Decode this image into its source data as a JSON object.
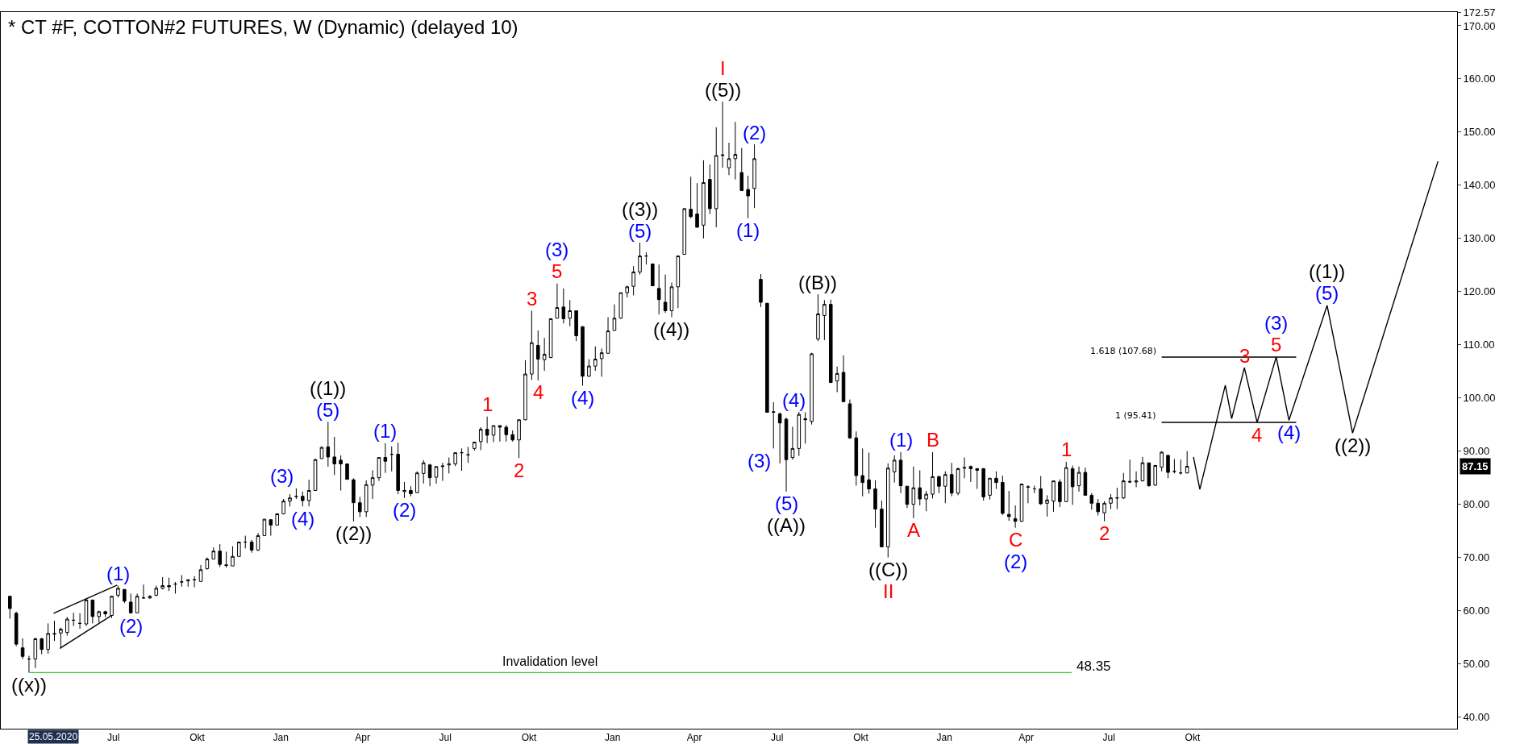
{
  "chart_data": {
    "type": "candlestick",
    "title": "* CT #F, COTTON#2 FUTURES, W (Dynamic) (delayed 10)",
    "color": "#000000",
    "x": [
      "2020-03-09",
      "2020-03-16",
      "2020-03-23",
      "2020-03-30",
      "2020-04-06",
      "2020-04-13",
      "2020-04-20",
      "2020-04-27",
      "2020-05-04",
      "2020-05-11",
      "2020-05-18",
      "2020-05-25",
      "2020-06-01",
      "2020-06-08",
      "2020-06-15",
      "2020-06-22",
      "2020-06-29",
      "2020-07-06",
      "2020-07-13",
      "2020-07-20",
      "2020-07-27",
      "2020-08-03",
      "2020-08-10",
      "2020-08-17",
      "2020-08-24",
      "2020-08-31",
      "2020-09-07",
      "2020-09-14",
      "2020-09-21",
      "2020-09-28",
      "2020-10-05",
      "2020-10-12",
      "2020-10-19",
      "2020-10-26",
      "2020-11-02",
      "2020-11-09",
      "2020-11-16",
      "2020-11-23",
      "2020-11-30",
      "2020-12-07",
      "2020-12-14",
      "2020-12-21",
      "2020-12-28",
      "2021-01-04",
      "2021-01-11",
      "2021-01-18",
      "2021-01-25",
      "2021-02-01",
      "2021-02-08",
      "2021-02-15",
      "2021-02-22",
      "2021-03-01",
      "2021-03-08",
      "2021-03-15",
      "2021-03-22",
      "2021-03-29",
      "2021-04-05",
      "2021-04-12",
      "2021-04-19",
      "2021-04-26",
      "2021-05-03",
      "2021-05-10",
      "2021-05-17",
      "2021-05-24",
      "2021-05-31",
      "2021-06-07",
      "2021-06-14",
      "2021-06-21",
      "2021-06-28",
      "2021-07-05",
      "2021-07-12",
      "2021-07-19",
      "2021-07-26",
      "2021-08-02",
      "2021-08-09",
      "2021-08-16",
      "2021-08-23",
      "2021-08-30",
      "2021-09-06",
      "2021-09-13",
      "2021-09-20",
      "2021-09-27",
      "2021-10-04",
      "2021-10-11",
      "2021-10-18",
      "2021-10-25",
      "2021-11-01",
      "2021-11-08",
      "2021-11-15",
      "2021-11-22",
      "2021-11-29",
      "2021-12-06",
      "2021-12-13",
      "2021-12-20",
      "2021-12-27",
      "2022-01-03",
      "2022-01-10",
      "2022-01-17",
      "2022-01-24",
      "2022-01-31",
      "2022-02-07",
      "2022-02-14",
      "2022-02-21",
      "2022-02-28",
      "2022-03-07",
      "2022-03-14",
      "2022-03-21",
      "2022-03-28",
      "2022-04-04",
      "2022-04-11",
      "2022-04-18",
      "2022-04-25",
      "2022-05-02",
      "2022-05-09",
      "2022-05-16",
      "2022-05-23",
      "2022-05-30",
      "2022-06-06",
      "2022-06-13",
      "2022-06-20",
      "2022-06-27",
      "2022-07-04",
      "2022-07-11",
      "2022-07-18",
      "2022-07-25",
      "2022-08-01",
      "2022-08-08",
      "2022-08-15",
      "2022-08-22",
      "2022-08-29",
      "2022-09-05",
      "2022-09-12",
      "2022-09-19",
      "2022-09-26",
      "2022-10-03",
      "2022-10-10",
      "2022-10-17",
      "2022-10-24",
      "2022-10-31",
      "2022-11-07",
      "2022-11-14",
      "2022-11-21",
      "2022-11-28",
      "2022-12-05",
      "2022-12-12",
      "2022-12-19",
      "2022-12-26",
      "2023-01-02",
      "2023-01-09",
      "2023-01-16",
      "2023-01-23",
      "2023-01-30",
      "2023-02-06",
      "2023-02-13",
      "2023-02-20",
      "2023-02-27",
      "2023-03-06",
      "2023-03-13",
      "2023-03-20",
      "2023-03-27",
      "2023-04-03",
      "2023-04-10",
      "2023-04-17",
      "2023-04-24",
      "2023-05-01",
      "2023-05-08",
      "2023-05-15",
      "2023-05-22",
      "2023-05-29",
      "2023-06-05",
      "2023-06-12",
      "2023-06-19",
      "2023-06-26",
      "2023-07-03",
      "2023-07-10",
      "2023-07-17",
      "2023-07-24",
      "2023-07-31",
      "2023-08-07",
      "2023-08-14",
      "2023-08-21",
      "2023-08-28",
      "2023-09-04",
      "2023-09-11",
      "2023-09-18",
      "2023-09-25"
    ],
    "ohlc": [
      [
        62.7,
        62.8,
        58.5,
        60.4
      ],
      [
        59.5,
        59.8,
        53.3,
        53.7
      ],
      [
        53.0,
        54.8,
        50.9,
        51.4
      ],
      [
        50.9,
        51.5,
        48.35,
        50.9
      ],
      [
        50.9,
        54.9,
        49.2,
        54.7
      ],
      [
        54.7,
        54.9,
        51.8,
        52.7
      ],
      [
        52.7,
        57.6,
        51.9,
        55.7
      ],
      [
        55.7,
        58.1,
        54.3,
        55.6
      ],
      [
        55.8,
        56.8,
        52.9,
        56.5
      ],
      [
        55.9,
        58.8,
        55.3,
        58.4
      ],
      [
        58.2,
        59.6,
        57.1,
        58.2
      ],
      [
        57.6,
        59.5,
        56.6,
        57.6
      ],
      [
        57.5,
        62.3,
        57.1,
        62.0
      ],
      [
        62.0,
        62.0,
        57.6,
        58.9
      ],
      [
        58.9,
        60.0,
        57.8,
        59.8
      ],
      [
        59.8,
        60.0,
        58.8,
        59.4
      ],
      [
        59.1,
        62.8,
        58.6,
        62.7
      ],
      [
        62.9,
        64.7,
        62.5,
        64.2
      ],
      [
        64.0,
        64.0,
        61.4,
        61.8
      ],
      [
        61.6,
        63.2,
        59.4,
        59.6
      ],
      [
        59.6,
        63.2,
        59.6,
        62.7
      ],
      [
        62.4,
        64.9,
        62.2,
        62.4
      ],
      [
        62.4,
        62.9,
        62.2,
        62.7
      ],
      [
        62.9,
        64.7,
        62.7,
        64.2
      ],
      [
        64.2,
        66.3,
        64.0,
        64.7
      ],
      [
        64.7,
        66.2,
        63.7,
        64.5
      ],
      [
        65.0,
        65.4,
        63.2,
        65.0
      ],
      [
        65.4,
        66.7,
        64.5,
        65.4
      ],
      [
        65.6,
        65.9,
        64.5,
        65.8
      ],
      [
        65.8,
        66.5,
        64.4,
        65.8
      ],
      [
        65.5,
        68.6,
        65.5,
        67.7
      ],
      [
        67.9,
        70.0,
        67.7,
        69.7
      ],
      [
        69.7,
        71.9,
        69.7,
        71.2
      ],
      [
        71.2,
        72.5,
        68.2,
        68.7
      ],
      [
        68.6,
        71.1,
        68.1,
        68.5
      ],
      [
        68.4,
        72.1,
        68.4,
        70.2
      ],
      [
        70.2,
        72.9,
        70.2,
        72.9
      ],
      [
        72.9,
        74.1,
        71.7,
        72.9
      ],
      [
        72.9,
        73.3,
        70.9,
        71.4
      ],
      [
        71.4,
        74.6,
        71.2,
        74.1
      ],
      [
        74.1,
        77.2,
        74.1,
        77.2
      ],
      [
        77.1,
        77.2,
        74.1,
        76.1
      ],
      [
        76.1,
        78.3,
        76.1,
        78.2
      ],
      [
        78.2,
        81.0,
        78.1,
        80.6
      ],
      [
        80.6,
        81.9,
        79.6,
        81.2
      ],
      [
        81.5,
        83.0,
        81.0,
        81.5
      ],
      [
        81.5,
        82.4,
        79.6,
        80.7
      ],
      [
        80.7,
        84.6,
        79.6,
        82.6
      ],
      [
        82.6,
        88.6,
        82.6,
        88.4
      ],
      [
        88.6,
        90.9,
        88.6,
        90.7
      ],
      [
        90.8,
        95.5,
        87.1,
        88.9
      ],
      [
        88.9,
        92.7,
        85.5,
        87.6
      ],
      [
        88.3,
        89.2,
        82.6,
        87.6
      ],
      [
        87.6,
        87.6,
        84.7,
        84.7
      ],
      [
        84.6,
        84.9,
        76.8,
        80.3
      ],
      [
        80.3,
        81.4,
        77.6,
        78.6
      ],
      [
        78.6,
        84.5,
        77.6,
        83.7
      ],
      [
        83.6,
        86.4,
        81.0,
        85.0
      ],
      [
        85.0,
        88.8,
        84.4,
        88.8
      ],
      [
        88.8,
        91.5,
        85.9,
        88.1
      ],
      [
        89.4,
        90.9,
        86.2,
        89.4
      ],
      [
        89.4,
        91.6,
        81.9,
        82.6
      ],
      [
        82.4,
        84.2,
        81.2,
        82.6
      ],
      [
        82.6,
        83.4,
        81.5,
        82.0
      ],
      [
        82.2,
        86.2,
        82.1,
        85.9
      ],
      [
        85.8,
        88.3,
        83.9,
        87.8
      ],
      [
        87.4,
        87.6,
        83.4,
        85.0
      ],
      [
        85.1,
        87.2,
        83.9,
        87.1
      ],
      [
        87.1,
        87.8,
        84.4,
        87.2
      ],
      [
        87.4,
        88.8,
        85.8,
        87.6
      ],
      [
        87.6,
        89.8,
        87.2,
        89.7
      ],
      [
        89.7,
        90.5,
        86.3,
        89.7
      ],
      [
        89.3,
        90.8,
        87.8,
        89.3
      ],
      [
        90.5,
        91.7,
        90.1,
        91.7
      ],
      [
        91.8,
        94.5,
        90.2,
        94.1
      ],
      [
        94.1,
        96.5,
        91.5,
        93.0
      ],
      [
        93.0,
        94.8,
        91.7,
        94.8
      ],
      [
        94.8,
        94.8,
        91.8,
        94.5
      ],
      [
        94.5,
        94.9,
        91.8,
        93.1
      ],
      [
        93.1,
        93.9,
        91.8,
        92.1
      ],
      [
        92.1,
        96.0,
        88.7,
        95.9
      ],
      [
        95.9,
        107.1,
        95.8,
        104.5
      ],
      [
        104.5,
        116.4,
        103.4,
        110.4
      ],
      [
        109.9,
        112.7,
        103.3,
        107.3
      ],
      [
        107.2,
        111.3,
        105.1,
        108.2
      ],
      [
        107.6,
        115.0,
        107.5,
        114.9
      ],
      [
        115.0,
        121.5,
        115.0,
        117.0
      ],
      [
        117.1,
        120.6,
        114.0,
        114.9
      ],
      [
        115.0,
        118.4,
        113.5,
        116.4
      ],
      [
        116.4,
        116.4,
        110.7,
        111.7
      ],
      [
        113.4,
        113.5,
        102.3,
        104.1
      ],
      [
        104.1,
        107.3,
        104.0,
        106.0
      ],
      [
        106.0,
        109.7,
        105.1,
        107.3
      ],
      [
        107.4,
        109.3,
        104.0,
        108.5
      ],
      [
        108.4,
        115.2,
        108.3,
        112.6
      ],
      [
        112.7,
        117.6,
        112.7,
        115.0
      ],
      [
        115.0,
        119.8,
        114.9,
        119.8
      ],
      [
        119.8,
        121.1,
        118.9,
        120.9
      ],
      [
        121.0,
        124.8,
        119.3,
        123.7
      ],
      [
        123.7,
        129.2,
        123.2,
        126.7
      ],
      [
        126.7,
        127.4,
        125.1,
        126.7
      ],
      [
        125.2,
        125.3,
        121.0,
        121.1
      ],
      [
        120.6,
        125.1,
        115.7,
        118.5
      ],
      [
        118.0,
        123.2,
        116.0,
        116.4
      ],
      [
        116.4,
        121.7,
        115.2,
        120.9
      ],
      [
        120.9,
        126.8,
        116.9,
        126.7
      ],
      [
        127.0,
        135.7,
        127.0,
        135.6
      ],
      [
        135.5,
        141.6,
        133.8,
        134.1
      ],
      [
        134.6,
        140.4,
        132.1,
        132.1
      ],
      [
        132.5,
        144.7,
        130.0,
        140.5
      ],
      [
        141.1,
        143.9,
        134.6,
        135.6
      ],
      [
        135.6,
        150.9,
        132.1,
        145.6
      ],
      [
        145.6,
        155.7,
        143.3,
        145.7
      ],
      [
        143.3,
        148.0,
        141.9,
        145.0
      ],
      [
        145.0,
        151.9,
        141.1,
        145.8
      ],
      [
        142.4,
        147.0,
        139.0,
        139.0
      ],
      [
        139.2,
        141.8,
        133.8,
        138.0
      ],
      [
        139.4,
        147.7,
        135.7,
        145.0
      ],
      [
        122.3,
        123.3,
        117.1,
        118.0
      ],
      [
        117.8,
        117.9,
        97.3,
        97.3
      ],
      [
        97.4,
        99.2,
        90.5,
        97.3
      ],
      [
        97.0,
        97.3,
        87.7,
        95.3
      ],
      [
        96.0,
        96.3,
        82.4,
        88.4
      ],
      [
        88.8,
        94.6,
        88.4,
        90.5
      ],
      [
        90.5,
        97.4,
        89.1,
        96.9
      ],
      [
        96.1,
        97.3,
        91.4,
        95.9
      ],
      [
        95.6,
        108.5,
        95.0,
        108.3
      ],
      [
        111.1,
        119.5,
        110.7,
        115.8
      ],
      [
        115.5,
        118.4,
        110.9,
        117.6
      ],
      [
        117.6,
        118.5,
        102.9,
        102.9
      ],
      [
        103.2,
        105.9,
        101.1,
        104.6
      ],
      [
        104.8,
        108.0,
        99.2,
        99.3
      ],
      [
        98.9,
        99.7,
        92.3,
        92.5
      ],
      [
        92.5,
        93.7,
        83.5,
        85.4
      ],
      [
        85.4,
        90.5,
        81.5,
        84.1
      ],
      [
        84.6,
        89.7,
        82.0,
        82.9
      ],
      [
        82.9,
        84.5,
        75.6,
        79.1
      ],
      [
        79.1,
        80.7,
        71.9,
        72.0
      ],
      [
        72.0,
        87.7,
        70.0,
        86.8
      ],
      [
        86.1,
        89.2,
        84.1,
        88.3
      ],
      [
        88.3,
        89.8,
        82.1,
        83.5
      ],
      [
        83.4,
        83.4,
        79.3,
        80.0
      ],
      [
        80.0,
        87.1,
        77.4,
        83.1
      ],
      [
        83.1,
        86.4,
        79.8,
        81.0
      ],
      [
        81.0,
        82.5,
        78.7,
        81.9
      ],
      [
        81.9,
        89.8,
        81.1,
        85.2
      ],
      [
        85.2,
        85.4,
        82.1,
        83.4
      ],
      [
        83.4,
        86.2,
        80.2,
        85.6
      ],
      [
        85.6,
        87.8,
        81.5,
        82.1
      ],
      [
        82.1,
        86.9,
        81.7,
        86.7
      ],
      [
        86.8,
        88.8,
        84.9,
        86.9
      ],
      [
        87.1,
        87.3,
        84.2,
        86.7
      ],
      [
        86.7,
        86.8,
        82.9,
        86.4
      ],
      [
        86.7,
        86.8,
        80.7,
        81.4
      ],
      [
        81.7,
        84.9,
        80.9,
        84.9
      ],
      [
        84.9,
        86.2,
        82.9,
        84.1
      ],
      [
        84.1,
        85.4,
        78.0,
        78.3
      ],
      [
        78.1,
        82.5,
        76.9,
        77.7
      ],
      [
        77.3,
        79.8,
        75.6,
        76.8
      ],
      [
        76.8,
        83.9,
        76.7,
        83.8
      ],
      [
        83.3,
        83.6,
        80.2,
        83.2
      ],
      [
        82.9,
        83.5,
        82.1,
        82.9
      ],
      [
        82.9,
        85.3,
        79.9,
        80.1
      ],
      [
        80.2,
        81.7,
        77.7,
        80.8
      ],
      [
        80.6,
        84.4,
        78.6,
        84.4
      ],
      [
        84.2,
        84.7,
        79.5,
        80.5
      ],
      [
        80.5,
        88.0,
        80.5,
        86.9
      ],
      [
        86.7,
        87.3,
        79.9,
        83.3
      ],
      [
        83.5,
        87.1,
        82.4,
        86.0
      ],
      [
        86.0,
        86.9,
        81.7,
        81.7
      ],
      [
        81.7,
        82.1,
        79.0,
        80.2
      ],
      [
        80.2,
        81.0,
        77.9,
        78.6
      ],
      [
        78.4,
        80.6,
        76.8,
        80.2
      ],
      [
        80.2,
        81.9,
        79.1,
        81.2
      ],
      [
        81.2,
        83.1,
        79.1,
        81.2
      ],
      [
        81.2,
        85.9,
        81.0,
        84.4
      ],
      [
        84.3,
        88.4,
        84.0,
        84.2
      ],
      [
        84.2,
        86.2,
        83.2,
        84.4
      ],
      [
        84.4,
        88.9,
        84.3,
        87.8
      ],
      [
        87.8,
        87.8,
        83.3,
        83.5
      ],
      [
        83.6,
        87.4,
        83.5,
        87.3
      ],
      [
        87.0,
        90.0,
        86.2,
        89.8
      ],
      [
        89.2,
        89.3,
        84.9,
        86.0
      ],
      [
        86.2,
        88.5,
        85.8,
        86.2
      ],
      [
        85.9,
        88.4,
        85.6,
        85.9
      ],
      [
        85.9,
        90.0,
        85.8,
        87.15
      ]
    ],
    "xlim": [
      "2020-02-28",
      "2024-07-18"
    ],
    "ylim": [
      37.8,
      172.57
    ],
    "xticks": [
      {
        "value": "2020-07-01",
        "label": "Jul"
      },
      {
        "value": "2020-10-01",
        "label": "Okt"
      },
      {
        "value": "2021-01-01",
        "label": "Jan"
      },
      {
        "value": "2021-04-01",
        "label": "Apr"
      },
      {
        "value": "2021-07-01",
        "label": "Jul"
      },
      {
        "value": "2021-10-01",
        "label": "Okt"
      },
      {
        "value": "2022-01-01",
        "label": "Jan"
      },
      {
        "value": "2022-04-01",
        "label": "Apr"
      },
      {
        "value": "2022-07-01",
        "label": "Jul"
      },
      {
        "value": "2022-10-01",
        "label": "Okt"
      },
      {
        "value": "2023-01-01",
        "label": "Jan"
      },
      {
        "value": "2023-04-01",
        "label": "Apr"
      },
      {
        "value": "2023-07-01",
        "label": "Jul"
      },
      {
        "value": "2023-10-01",
        "label": "Okt"
      }
    ],
    "yticks": [
      {
        "value": 40,
        "label": "40.00"
      },
      {
        "value": 50,
        "label": "50.00"
      },
      {
        "value": 60,
        "label": "60.00"
      },
      {
        "value": 70,
        "label": "70.00"
      },
      {
        "value": 80,
        "label": "80.00"
      },
      {
        "value": 90,
        "label": "90.00"
      },
      {
        "value": 100,
        "label": "100.00"
      },
      {
        "value": 110,
        "label": "110.00"
      },
      {
        "value": 120,
        "label": "120.00"
      },
      {
        "value": 130,
        "label": "130.00"
      },
      {
        "value": 140,
        "label": "140.00"
      },
      {
        "value": 150,
        "label": "150.00"
      },
      {
        "value": 160,
        "label": "160.00"
      },
      {
        "value": 170,
        "label": "170.00"
      },
      {
        "value": 172.57,
        "label": "172.57"
      }
    ],
    "series": [
      {
        "type": "line",
        "color": "#33cc33",
        "name": "Invalidation level",
        "x": [
          "2020-03-30",
          "2023-05-21"
        ],
        "values": [
          48.35,
          48.35
        ],
        "value_labels": [
          null,
          "48.35"
        ]
      },
      {
        "type": "line",
        "color": "#000000",
        "x": [
          "2023-08-28",
          "2024-01-23"
        ],
        "values": [
          107.68,
          107.68
        ],
        "value_labels": [
          "1.618 (107.68)",
          null
        ]
      },
      {
        "type": "line",
        "color": "#000000",
        "x": [
          "2023-08-28",
          "2024-01-23"
        ],
        "values": [
          95.41,
          95.41
        ],
        "value_labels": [
          "1 (95.41)",
          null
        ]
      },
      {
        "type": "line",
        "color": "#000000",
        "x": [
          "2020-04-26",
          "2020-07-05"
        ],
        "values": [
          59.5,
          64.8
        ]
      },
      {
        "type": "line",
        "color": "#000000",
        "x": [
          "2020-05-03",
          "2020-06-28"
        ],
        "values": [
          52.9,
          59.0
        ]
      },
      {
        "type": "line",
        "color": "#000000",
        "x": [
          "2023-10-02",
          "2023-10-09",
          "2023-11-06",
          "2023-11-13",
          "2023-11-27",
          "2023-12-11",
          "2024-01-01",
          "2024-01-15",
          "2024-02-26",
          "2024-03-25",
          "2024-06-27"
        ],
        "values": [
          88.9,
          82.8,
          102.4,
          96.1,
          105.7,
          95.4,
          107.7,
          95.8,
          117.4,
          93.4,
          144.5
        ]
      }
    ],
    "annotations": [
      {
        "text": "((x))",
        "x": "2020-03-30",
        "y": 48.35
      },
      {
        "text": "(1)",
        "x": "2020-07-06",
        "y": 64.7
      },
      {
        "text": "(2)",
        "x": "2020-07-20",
        "y": 59.4
      },
      {
        "text": "(3)",
        "x": "2021-01-18",
        "y": 83.0
      },
      {
        "text": "(4)",
        "x": "2021-01-25",
        "y": 79.6
      },
      {
        "text": "(5)",
        "x": "2021-02-22",
        "y": 95.5
      },
      {
        "text": "((1))",
        "x": "2021-02-22",
        "y": 95.5
      },
      {
        "text": "((2))",
        "x": "2021-03-22",
        "y": 76.8
      },
      {
        "text": "(1)",
        "x": "2021-04-26",
        "y": 91.5
      },
      {
        "text": "(2)",
        "x": "2021-05-17",
        "y": 81.2
      },
      {
        "text": "1",
        "x": "2021-08-16",
        "y": 96.5
      },
      {
        "text": "2",
        "x": "2021-09-20",
        "y": 88.7
      },
      {
        "text": "3",
        "x": "2021-10-04",
        "y": 116.4
      },
      {
        "text": "4",
        "x": "2021-10-11",
        "y": 103.3
      },
      {
        "text": "5",
        "x": "2021-11-01",
        "y": 121.5
      },
      {
        "text": "(3)",
        "x": "2021-11-01",
        "y": 121.5
      },
      {
        "text": "(4)",
        "x": "2021-11-29",
        "y": 102.3
      },
      {
        "text": "(5)",
        "x": "2022-01-31",
        "y": 129.2
      },
      {
        "text": "((3))",
        "x": "2022-01-31",
        "y": 129.2
      },
      {
        "text": "((4))",
        "x": "2022-03-07",
        "y": 115.2
      },
      {
        "text": "((5))",
        "x": "2022-05-02",
        "y": 155.7
      },
      {
        "text": "I",
        "x": "2022-05-02",
        "y": 155.7
      },
      {
        "text": "(1)",
        "x": "2022-05-30",
        "y": 133.8
      },
      {
        "text": "(2)",
        "x": "2022-06-06",
        "y": 147.7
      },
      {
        "text": "(3)",
        "x": "2022-06-27",
        "y": 90.5
      },
      {
        "text": "(4)",
        "x": "2022-07-04",
        "y": 97.3
      },
      {
        "text": "(5)",
        "x": "2022-07-11",
        "y": 82.4
      },
      {
        "text": "((A))",
        "x": "2022-07-11",
        "y": 82.4
      },
      {
        "text": "((B))",
        "x": "2022-08-15",
        "y": 119.5
      },
      {
        "text": "((C))",
        "x": "2022-10-31",
        "y": 70.0
      },
      {
        "text": "II",
        "x": "2022-10-31",
        "y": 70.0
      },
      {
        "text": "(1)",
        "x": "2022-11-14",
        "y": 89.8
      },
      {
        "text": "A",
        "x": "2022-11-28",
        "y": 77.4
      },
      {
        "text": "B",
        "x": "2022-12-19",
        "y": 89.8
      },
      {
        "text": "C",
        "x": "2023-03-20",
        "y": 75.6
      },
      {
        "text": "(2)",
        "x": "2023-03-20",
        "y": 75.6
      },
      {
        "text": "1",
        "x": "2023-05-15",
        "y": 88.0
      },
      {
        "text": "2",
        "x": "2023-06-26",
        "y": 76.8
      },
      {
        "text": "3",
        "x": "2023-11-27",
        "y": 105.7
      },
      {
        "text": "4",
        "x": "2023-12-11",
        "y": 95.4
      },
      {
        "text": "5",
        "x": "2024-01-01",
        "y": 107.7
      },
      {
        "text": "(3)",
        "x": "2024-01-01",
        "y": 107.7
      },
      {
        "text": "(4)",
        "x": "2024-01-15",
        "y": 95.8
      },
      {
        "text": "(5)",
        "x": "2024-02-26",
        "y": 117.4
      },
      {
        "text": "((1))",
        "x": "2024-02-26",
        "y": 117.4
      },
      {
        "text": "((2))",
        "x": "2024-03-25",
        "y": 93.4
      },
      {
        "text": "87.15",
        "y": 87.15
      },
      "25.05.2020"
    ]
  }
}
